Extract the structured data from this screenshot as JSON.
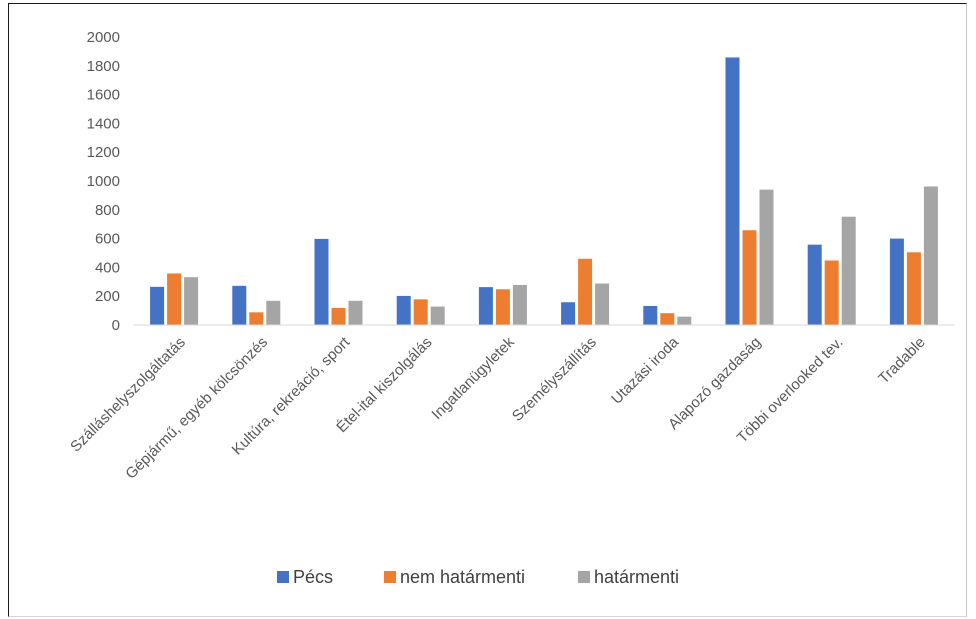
{
  "chart_data": {
    "type": "bar",
    "title": "",
    "xlabel": "",
    "ylabel": "",
    "ylim": [
      0,
      2000
    ],
    "yticks": [
      0,
      200,
      400,
      600,
      800,
      1000,
      1200,
      1400,
      1600,
      1800,
      2000
    ],
    "grid": false,
    "legend_position": "bottom",
    "categories": [
      "Szálláshelyszolgáltatás",
      "Gépjármű, egyéb kölcsönzés",
      "Kultúra, rekreáció, sport",
      "Étel-ital kiszolgálás",
      "Ingatlanügyletek",
      "Személyszállítás",
      "Utazási iroda",
      "Alapozó gazdaság",
      "Többi overlooked tev.",
      "Tradable"
    ],
    "series": [
      {
        "name": "Pécs",
        "color": "#4472C4",
        "values": [
          265,
          272,
          598,
          202,
          263,
          158,
          132,
          1858,
          558,
          600
        ]
      },
      {
        "name": "nem határmenti",
        "color": "#ED7D31",
        "values": [
          358,
          88,
          118,
          178,
          248,
          460,
          82,
          658,
          448,
          505
        ]
      },
      {
        "name": "határmenti",
        "color": "#A5A5A5",
        "values": [
          332,
          168,
          168,
          128,
          278,
          288,
          58,
          940,
          752,
          962
        ]
      }
    ]
  }
}
